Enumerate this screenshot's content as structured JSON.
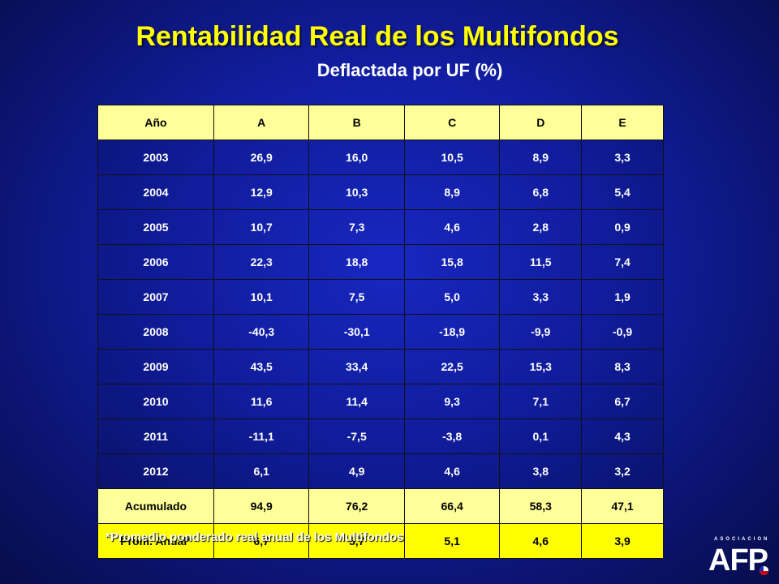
{
  "title": "Rentabilidad Real de los Multifondos",
  "subtitle": "Deflactada por UF (%)",
  "table": {
    "headers": [
      "Año",
      "A",
      "B",
      "C",
      "D",
      "E"
    ],
    "rows": [
      [
        "2003",
        "26,9",
        "16,0",
        "10,5",
        "8,9",
        "3,3"
      ],
      [
        "2004",
        "12,9",
        "10,3",
        "8,9",
        "6,8",
        "5,4"
      ],
      [
        "2005",
        "10,7",
        "7,3",
        "4,6",
        "2,8",
        "0,9"
      ],
      [
        "2006",
        "22,3",
        "18,8",
        "15,8",
        "11,5",
        "7,4"
      ],
      [
        "2007",
        "10,1",
        "7,5",
        "5,0",
        "3,3",
        "1,9"
      ],
      [
        "2008",
        "-40,3",
        "-30,1",
        "-18,9",
        "-9,9",
        "-0,9"
      ],
      [
        "2009",
        "43,5",
        "33,4",
        "22,5",
        "15,3",
        "8,3"
      ],
      [
        "2010",
        "11,6",
        "11,4",
        "9,3",
        "7,1",
        "6,7"
      ],
      [
        "2011",
        "-11,1",
        "-7,5",
        "-3,8",
        "0,1",
        "4,3"
      ],
      [
        "2012",
        "6,1",
        "4,9",
        "4,6",
        "3,8",
        "3,2"
      ]
    ],
    "totals": [
      [
        "Acumulado",
        "94,9",
        "76,2",
        "66,4",
        "58,3",
        "47,1"
      ],
      [
        "Prom. Anual*",
        "6,7",
        "5,7",
        "5,1",
        "4,6",
        "3,9"
      ]
    ]
  },
  "footnote": "*Promedio ponderado real anual de los Multifondos",
  "logo": {
    "tagline": "ASOCIACION",
    "name": "AFP"
  },
  "colors": {
    "title": "#ffff00",
    "header_row": "#ffff99",
    "last_row": "#ffff00",
    "background": "#121fa6"
  }
}
